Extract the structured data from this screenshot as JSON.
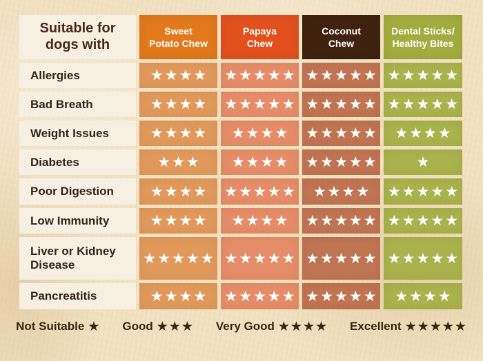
{
  "table": {
    "corner_label": "Suitable for\ndogs with",
    "star_glyph": "★",
    "columns": [
      {
        "id": "sweet-potato-chew",
        "label": "Sweet\nPotato Chew",
        "header_color": "#e2791c",
        "cell_color": "#e0995b"
      },
      {
        "id": "papaya-chew",
        "label": "Papaya\nChew",
        "header_color": "#e2501e",
        "cell_color": "#e58d68"
      },
      {
        "id": "coconut-chew",
        "label": "Coconut\nChew",
        "header_color": "#40220f",
        "cell_color": "#bf7452"
      },
      {
        "id": "dental-sticks-healthy-bites",
        "label": "Dental Sticks/\nHealthy Bites",
        "header_color": "#a2ac3e",
        "cell_color": "#a9b24c"
      }
    ],
    "rows": [
      {
        "label": "Allergies",
        "ratings": [
          4,
          5,
          5,
          5
        ]
      },
      {
        "label": "Bad Breath",
        "ratings": [
          4,
          5,
          5,
          5
        ]
      },
      {
        "label": "Weight Issues",
        "ratings": [
          4,
          4,
          5,
          4
        ]
      },
      {
        "label": "Diabetes",
        "ratings": [
          3,
          4,
          5,
          1
        ]
      },
      {
        "label": "Poor Digestion",
        "ratings": [
          4,
          5,
          4,
          5
        ]
      },
      {
        "label": "Low Immunity",
        "ratings": [
          4,
          4,
          5,
          5
        ]
      },
      {
        "label": "Liver or Kidney Disease",
        "ratings": [
          5,
          5,
          5,
          5
        ]
      },
      {
        "label": "Pancreatitis",
        "ratings": [
          4,
          5,
          5,
          4
        ]
      }
    ]
  },
  "legend": [
    {
      "label": "Not Suitable",
      "stars": 1
    },
    {
      "label": "Good",
      "stars": 3
    },
    {
      "label": "Very Good",
      "stars": 4
    },
    {
      "label": "Excellent",
      "stars": 5
    }
  ],
  "colors": {
    "background": "#f1e1c0",
    "label_cell_bg": "#f6f0e2",
    "label_text": "#34231a",
    "corner_text": "#4a2817",
    "header_text": "#ffffff",
    "cell_star": "#ffffff",
    "legend_text": "#3b2414"
  },
  "chart_data": {
    "type": "table",
    "title": "Suitable for dogs with",
    "columns": [
      "Sweet Potato Chew",
      "Papaya Chew",
      "Coconut Chew",
      "Dental Sticks/Healthy Bites"
    ],
    "rows": [
      "Allergies",
      "Bad Breath",
      "Weight Issues",
      "Diabetes",
      "Poor Digestion",
      "Low Immunity",
      "Liver or Kidney Disease",
      "Pancreatitis"
    ],
    "values": [
      [
        4,
        5,
        5,
        5
      ],
      [
        4,
        5,
        5,
        5
      ],
      [
        4,
        4,
        5,
        4
      ],
      [
        3,
        4,
        5,
        1
      ],
      [
        4,
        5,
        4,
        5
      ],
      [
        4,
        4,
        5,
        5
      ],
      [
        5,
        5,
        5,
        5
      ],
      [
        4,
        5,
        5,
        4
      ]
    ],
    "rating_scale": {
      "1": "Not Suitable",
      "3": "Good",
      "4": "Very Good",
      "5": "Excellent"
    },
    "legend_position": "bottom"
  }
}
